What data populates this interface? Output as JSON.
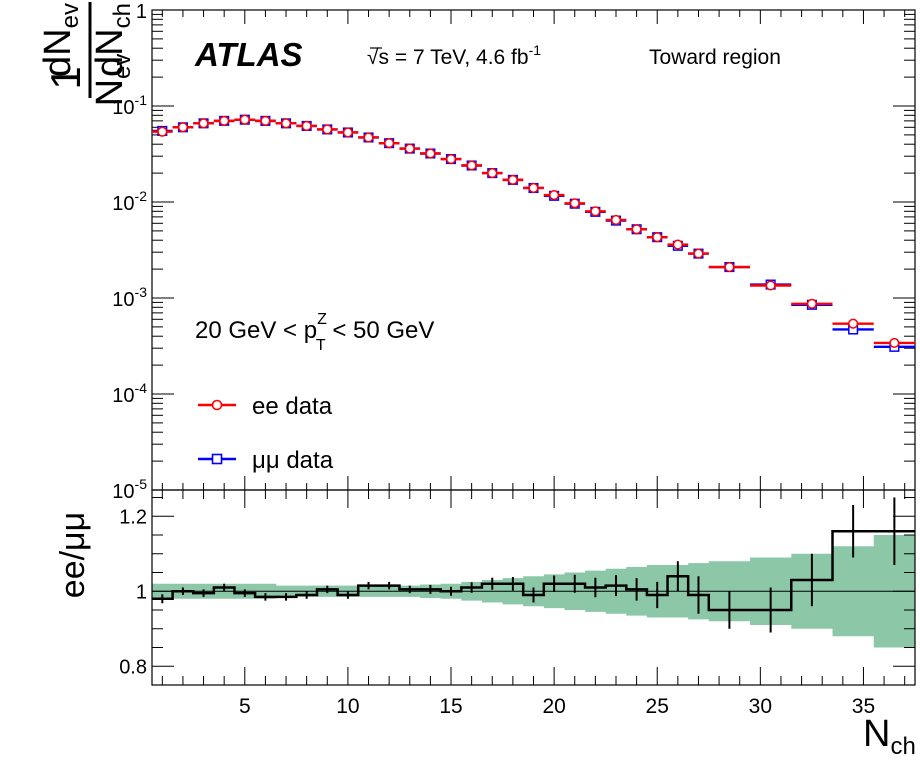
{
  "chart_data": [
    {
      "type": "line",
      "panel": "main",
      "experiment": "ATLAS",
      "energy_text": "√s = 7 TeV, 4.6 fb",
      "lumi_sup": "-1",
      "region": "Toward region",
      "selection": {
        "prefix": "20 GeV < p",
        "sup": "Z",
        "sub": "T",
        "suffix": " < 50 GeV"
      },
      "ylabel": {
        "one": "1",
        "n": "N",
        "n_sub": "ev",
        "dn": "dN",
        "dn_sub": "ev",
        "dnch": "dN",
        "dnch_sub": "ch"
      },
      "yscale": "log",
      "ylim": [
        1e-05,
        1
      ],
      "ytick_labels": [
        {
          "value": 1,
          "base": "1",
          "exp": ""
        },
        {
          "value": 0.1,
          "base": "10",
          "exp": "-1"
        },
        {
          "value": 0.01,
          "base": "10",
          "exp": "-2"
        },
        {
          "value": 0.001,
          "base": "10",
          "exp": "-3"
        },
        {
          "value": 0.0001,
          "base": "10",
          "exp": "-4"
        },
        {
          "value": 1e-05,
          "base": "10",
          "exp": "-5"
        }
      ],
      "xlim": [
        0.5,
        37.5
      ],
      "legend_position": "bottom-left",
      "series": [
        {
          "name": "ee data",
          "marker": "circle",
          "color": "#ff0000",
          "x": [
            1,
            2,
            3,
            4,
            5,
            6,
            7,
            8,
            9,
            10,
            11,
            12,
            13,
            14,
            15,
            16,
            17,
            18,
            19,
            20,
            21,
            22,
            23,
            24,
            25,
            26,
            27,
            28.5,
            30.5,
            32.5,
            34.5,
            36.5
          ],
          "y": [
            0.054,
            0.06,
            0.066,
            0.07,
            0.072,
            0.07,
            0.066,
            0.062,
            0.057,
            0.053,
            0.047,
            0.041,
            0.036,
            0.032,
            0.028,
            0.024,
            0.02,
            0.017,
            0.014,
            0.0118,
            0.0097,
            0.008,
            0.0065,
            0.0052,
            0.0043,
            0.0036,
            0.0029,
            0.0021,
            0.00135,
            0.00087,
            0.00054,
            0.00034
          ]
        },
        {
          "name": "μμ data",
          "marker": "square",
          "color": "#0000ff",
          "x": [
            1,
            2,
            3,
            4,
            5,
            6,
            7,
            8,
            9,
            10,
            11,
            12,
            13,
            14,
            15,
            16,
            17,
            18,
            19,
            20,
            21,
            22,
            23,
            24,
            25,
            26,
            27,
            28.5,
            30.5,
            32.5,
            34.5,
            36.5
          ],
          "y": [
            0.055,
            0.06,
            0.066,
            0.07,
            0.072,
            0.07,
            0.066,
            0.062,
            0.057,
            0.053,
            0.047,
            0.041,
            0.036,
            0.032,
            0.028,
            0.024,
            0.02,
            0.017,
            0.014,
            0.0116,
            0.0096,
            0.0079,
            0.0064,
            0.0052,
            0.0043,
            0.0035,
            0.0029,
            0.0021,
            0.00138,
            0.00085,
            0.00047,
            0.00031
          ]
        }
      ]
    },
    {
      "type": "line",
      "panel": "ratio",
      "ylabel": "ee/μμ",
      "xlabel": {
        "main": "N",
        "sub": "ch"
      },
      "ylim": [
        0.75,
        1.27
      ],
      "ytick_labels": [
        "0.8",
        "1",
        "1.2"
      ],
      "xtick_labels": [
        "5",
        "10",
        "15",
        "20",
        "25",
        "30",
        "35"
      ],
      "xlim": [
        0.5,
        37.5
      ],
      "band_color": "#8cc8a8",
      "series": [
        {
          "name": "",
          "bins": [
            [
              0.5,
              1.5
            ],
            [
              1.5,
              2.5
            ],
            [
              2.5,
              3.5
            ],
            [
              3.5,
              4.5
            ],
            [
              4.5,
              5.5
            ],
            [
              5.5,
              6.5
            ],
            [
              6.5,
              7.5
            ],
            [
              7.5,
              8.5
            ],
            [
              8.5,
              9.5
            ],
            [
              9.5,
              10.5
            ],
            [
              10.5,
              11.5
            ],
            [
              11.5,
              12.5
            ],
            [
              12.5,
              13.5
            ],
            [
              13.5,
              14.5
            ],
            [
              14.5,
              15.5
            ],
            [
              15.5,
              16.5
            ],
            [
              16.5,
              17.5
            ],
            [
              17.5,
              18.5
            ],
            [
              18.5,
              19.5
            ],
            [
              19.5,
              20.5
            ],
            [
              20.5,
              21.5
            ],
            [
              21.5,
              22.5
            ],
            [
              22.5,
              23.5
            ],
            [
              23.5,
              24.5
            ],
            [
              24.5,
              25.5
            ],
            [
              25.5,
              26.5
            ],
            [
              26.5,
              27.5
            ],
            [
              27.5,
              29.5
            ],
            [
              29.5,
              31.5
            ],
            [
              31.5,
              33.5
            ],
            [
              33.5,
              35.5
            ],
            [
              35.5,
              37.5
            ]
          ],
          "ratio": [
            0.98,
            1.0,
            0.995,
            1.01,
            0.995,
            0.985,
            0.985,
            0.99,
            1.005,
            0.99,
            1.015,
            1.015,
            1.005,
            1.005,
            1.0,
            1.01,
            1.02,
            1.02,
            0.99,
            1.02,
            1.02,
            1.01,
            1.015,
            1.005,
            0.99,
            1.04,
            0.99,
            0.95,
            0.95,
            1.03,
            1.16,
            1.16
          ],
          "stat_err": [
            0.012,
            0.01,
            0.01,
            0.01,
            0.01,
            0.01,
            0.01,
            0.01,
            0.01,
            0.01,
            0.01,
            0.01,
            0.01,
            0.012,
            0.012,
            0.014,
            0.016,
            0.018,
            0.02,
            0.022,
            0.024,
            0.026,
            0.028,
            0.03,
            0.035,
            0.04,
            0.05,
            0.05,
            0.06,
            0.07,
            0.07,
            0.09
          ],
          "band_half_width": [
            0.02,
            0.02,
            0.02,
            0.02,
            0.02,
            0.02,
            0.015,
            0.015,
            0.015,
            0.015,
            0.015,
            0.015,
            0.015,
            0.018,
            0.02,
            0.025,
            0.03,
            0.035,
            0.04,
            0.045,
            0.05,
            0.055,
            0.06,
            0.065,
            0.07,
            0.07,
            0.075,
            0.08,
            0.09,
            0.1,
            0.12,
            0.15
          ]
        }
      ]
    }
  ]
}
